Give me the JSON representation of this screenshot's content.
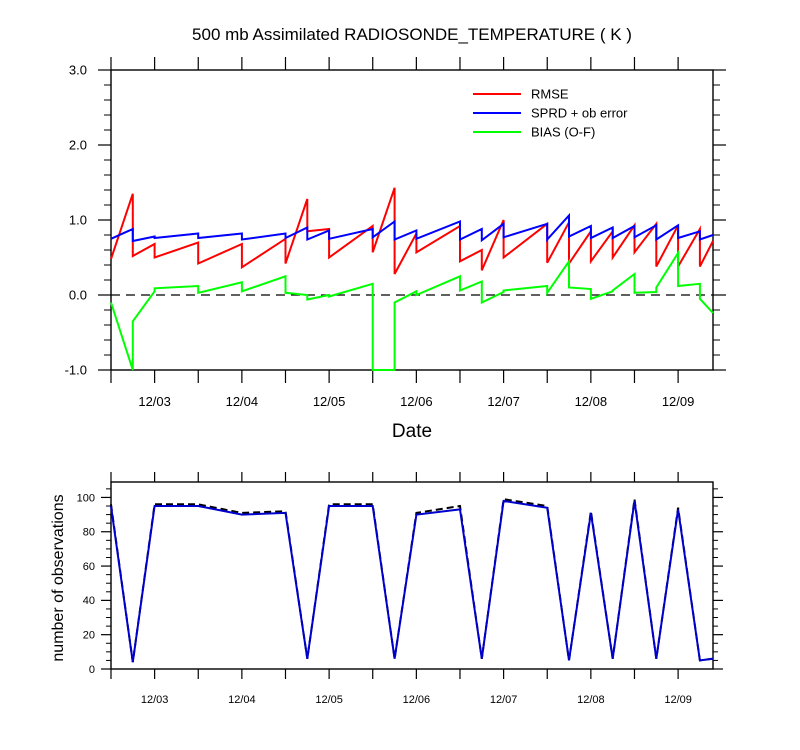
{
  "chart_data": [
    {
      "type": "line",
      "title": "500 mb Assimilated RADIOSONDE_TEMPERATURE ( K )",
      "xlabel": "Date",
      "ylabel": "",
      "x_ticks": [
        "12/03",
        "12/04",
        "12/05",
        "12/06",
        "12/07",
        "12/08",
        "12/09"
      ],
      "y_ticks": [
        "3.0",
        "2.0",
        "1.0",
        "0.0",
        "-1.0"
      ],
      "xlim": [
        0,
        6.9
      ],
      "ylim": [
        -1,
        3
      ],
      "reference_line": 0,
      "legend_position": "top-right",
      "series": [
        {
          "name": "RMSE",
          "color": "#ff0000",
          "x": [
            0,
            0.25,
            0.25,
            0.5,
            0.5,
            1.0,
            1.0,
            1.5,
            1.5,
            2.0,
            2.0,
            2.25,
            2.25,
            2.5,
            2.5,
            3.0,
            3.0,
            3.25,
            3.25,
            3.5,
            3.5,
            4.0,
            4.0,
            4.25,
            4.25,
            4.5,
            4.5,
            5.0,
            5.0,
            5.25,
            5.25,
            5.5,
            5.5,
            5.75,
            5.75,
            6.0,
            6.0,
            6.25,
            6.25,
            6.5,
            6.5,
            6.75,
            6.75,
            6.9
          ],
          "y": [
            0.48,
            1.35,
            0.52,
            0.68,
            0.5,
            0.7,
            0.42,
            0.68,
            0.37,
            0.75,
            0.42,
            1.28,
            0.85,
            0.88,
            0.5,
            0.92,
            0.57,
            1.43,
            0.28,
            0.82,
            0.57,
            0.92,
            0.45,
            0.6,
            0.33,
            1.0,
            0.5,
            0.95,
            0.43,
            0.97,
            0.42,
            0.85,
            0.45,
            0.85,
            0.5,
            0.93,
            0.57,
            0.95,
            0.38,
            0.93,
            0.38,
            0.88,
            0.38,
            0.72
          ]
        },
        {
          "name": "SPRD + ob error",
          "color": "#0000ff",
          "x": [
            0,
            0.25,
            0.25,
            0.5,
            0.5,
            1.0,
            1.0,
            1.5,
            1.5,
            2.0,
            2.0,
            2.25,
            2.25,
            2.5,
            2.5,
            3.0,
            3.0,
            3.25,
            3.25,
            3.5,
            3.5,
            4.0,
            4.0,
            4.25,
            4.25,
            4.5,
            4.5,
            5.0,
            5.0,
            5.25,
            5.25,
            5.5,
            5.5,
            5.75,
            5.75,
            6.0,
            6.0,
            6.25,
            6.25,
            6.5,
            6.5,
            6.75,
            6.75,
            6.9
          ],
          "y": [
            0.75,
            0.88,
            0.72,
            0.78,
            0.76,
            0.82,
            0.76,
            0.82,
            0.74,
            0.82,
            0.76,
            0.9,
            0.74,
            0.86,
            0.75,
            0.88,
            0.77,
            0.98,
            0.74,
            0.86,
            0.75,
            0.98,
            0.74,
            0.88,
            0.73,
            0.95,
            0.77,
            0.95,
            0.74,
            1.06,
            0.78,
            0.92,
            0.76,
            0.9,
            0.76,
            0.92,
            0.77,
            0.93,
            0.74,
            0.93,
            0.76,
            0.85,
            0.74,
            0.8
          ]
        },
        {
          "name": "BIAS (O-F)",
          "color": "#00ff00",
          "x": [
            0,
            0.25,
            0.25,
            0.5,
            0.5,
            1.0,
            1.0,
            1.5,
            1.5,
            2.0,
            2.0,
            2.25,
            2.25,
            2.5,
            2.5,
            3.0,
            3.0,
            3.25,
            3.25,
            3.5,
            3.5,
            4.0,
            4.0,
            4.25,
            4.25,
            4.5,
            4.5,
            5.0,
            5.0,
            5.25,
            5.25,
            5.5,
            5.5,
            5.75,
            5.75,
            6.0,
            6.0,
            6.25,
            6.25,
            6.5,
            6.5,
            6.75,
            6.75,
            6.9
          ],
          "y": [
            -0.1,
            -1.0,
            -0.35,
            0.05,
            0.09,
            0.12,
            0.03,
            0.17,
            0.05,
            0.25,
            0.03,
            0.0,
            -0.06,
            0.0,
            -0.02,
            0.15,
            -1.0,
            -1.0,
            -0.1,
            0.05,
            0.0,
            0.25,
            0.06,
            0.18,
            -0.1,
            0.04,
            0.06,
            0.12,
            0.03,
            0.45,
            0.1,
            0.08,
            -0.05,
            0.05,
            0.06,
            0.28,
            0.03,
            0.04,
            0.1,
            0.56,
            0.12,
            0.15,
            -0.05,
            -0.24
          ]
        }
      ]
    },
    {
      "type": "line",
      "title": "",
      "xlabel": "",
      "ylabel": "number of observations",
      "x_ticks": [
        "12/03",
        "12/04",
        "12/05",
        "12/06",
        "12/07",
        "12/08",
        "12/09"
      ],
      "y_ticks": [
        "100",
        "80",
        "60",
        "40",
        "20",
        "0"
      ],
      "xlim": [
        0,
        6.9
      ],
      "ylim": [
        0,
        109
      ],
      "series": [
        {
          "color": "#000000",
          "dashed": true,
          "x": [
            0,
            0.25,
            0.5,
            1.0,
            1.5,
            2.0,
            2.25,
            2.5,
            3.0,
            3.25,
            3.5,
            4.0,
            4.25,
            4.5,
            5.0,
            5.25,
            5.5,
            5.75,
            6.0,
            6.25,
            6.5,
            6.75,
            6.9
          ],
          "y": [
            96,
            4,
            96,
            96,
            91,
            92,
            6,
            96,
            96,
            6,
            91,
            95,
            6,
            99,
            95,
            5,
            92,
            6,
            99,
            6,
            94,
            5,
            6
          ]
        },
        {
          "color": "#0000cd",
          "dashed": false,
          "x": [
            0,
            0.25,
            0.5,
            1.0,
            1.5,
            2.0,
            2.25,
            2.5,
            3.0,
            3.25,
            3.5,
            4.0,
            4.25,
            4.5,
            5.0,
            5.25,
            5.5,
            5.75,
            6.0,
            6.25,
            6.5,
            6.75,
            6.9
          ],
          "y": [
            95,
            4,
            95,
            95,
            90,
            91,
            6,
            95,
            95,
            6,
            90,
            93,
            6,
            98,
            94,
            5,
            91,
            6,
            98,
            6,
            93,
            5,
            6
          ]
        }
      ]
    }
  ]
}
